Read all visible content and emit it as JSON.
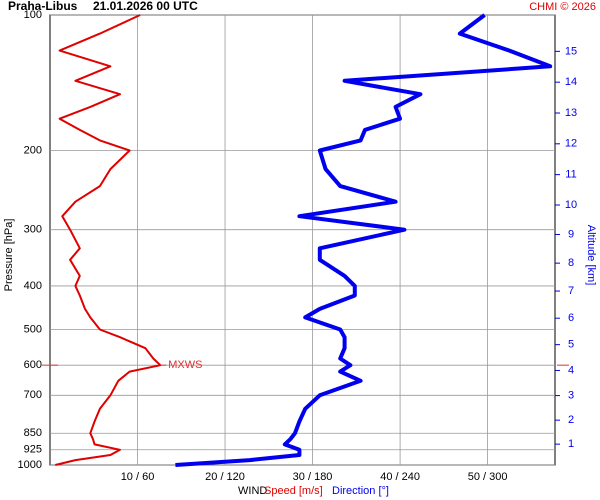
{
  "chart_data": {
    "type": "line",
    "title": "Praha-Libus",
    "subtitle": "21.01.2026 00 UTC",
    "credit": "CHMI © 2026",
    "xlabel": "WIND",
    "ylabel": "Pressure [hPa]",
    "y2label": "Altitude [km]",
    "ylog": true,
    "ylim": [
      1000,
      100
    ],
    "yticks": [
      100,
      200,
      300,
      400,
      500,
      600,
      700,
      850,
      925,
      1000
    ],
    "xlim": [
      0,
      57.7
    ],
    "x2lim": [
      0,
      346.3
    ],
    "xticks": [
      {
        "value": 10,
        "label": "10 / 60"
      },
      {
        "value": 20,
        "label": "20 / 120"
      },
      {
        "value": 30,
        "label": "30 / 180"
      },
      {
        "value": 40,
        "label": "40 / 240"
      },
      {
        "value": 50,
        "label": "50 / 300"
      }
    ],
    "y2ticks": [
      1,
      2,
      3,
      4,
      5,
      6,
      7,
      8,
      9,
      10,
      11,
      12,
      13,
      14,
      15
    ],
    "grid": true,
    "annotation": {
      "text": "MXWS",
      "pressure": 600,
      "color": "#e03030"
    },
    "y": [
      1000,
      975,
      950,
      925,
      900,
      875,
      850,
      800,
      750,
      700,
      650,
      620,
      600,
      580,
      550,
      520,
      500,
      470,
      450,
      420,
      400,
      380,
      350,
      330,
      300,
      280,
      260,
      240,
      220,
      200,
      190,
      180,
      170,
      160,
      150,
      140,
      130,
      120,
      110,
      100
    ],
    "series": [
      {
        "name": "Speed [m/s]",
        "color": "#e00000",
        "values": [
          0.6,
          2.9,
          6.9,
          8,
          5.1,
          4.9,
          4.6,
          5.1,
          5.7,
          6.9,
          7.8,
          9.1,
          12.6,
          11.8,
          10.9,
          8,
          5.7,
          4.6,
          4,
          3.4,
          2.9,
          3.4,
          2.3,
          3.4,
          2.3,
          1.4,
          2.9,
          5.7,
          6.9,
          9.1,
          5.7,
          3.4,
          1.1,
          4.6,
          8,
          2.9,
          6.9,
          1.1,
          5.7,
          10.3
        ]
      },
      {
        "name": "Direction [°]",
        "color": "#0000ee",
        "axis": "x2",
        "values": [
          86,
          137,
          171,
          171,
          161,
          165,
          168,
          171,
          175,
          185,
          213,
          199,
          206,
          199,
          202,
          202,
          199,
          175,
          185,
          209,
          209,
          202,
          185,
          185,
          243,
          171,
          237,
          199,
          189,
          185,
          213,
          216,
          240,
          237,
          254,
          202,
          343,
          315,
          281,
          298
        ]
      }
    ]
  }
}
